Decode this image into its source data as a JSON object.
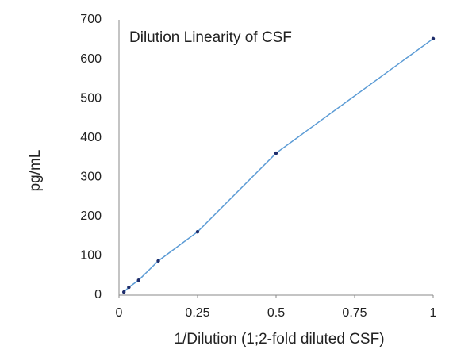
{
  "chart_data": {
    "type": "line",
    "title": "Dilution Linearity of  CSF",
    "x_label": "1/Dilution (1;2-fold diluted CSF)",
    "y_label": "pg/mL",
    "x": [
      0.015625,
      0.03125,
      0.0625,
      0.125,
      0.25,
      0.5,
      1
    ],
    "values": [
      8,
      20,
      38,
      87,
      161,
      361,
      652
    ],
    "color": "#5b9bd5",
    "marker_color": "#1f2d6b",
    "xlim": [
      0,
      1
    ],
    "xticks": [
      0,
      0.25,
      0.5,
      0.75,
      1
    ],
    "ylim": [
      0,
      700
    ],
    "yticks": [
      0,
      100,
      200,
      300,
      400,
      500,
      600,
      700
    ],
    "grid": false
  }
}
